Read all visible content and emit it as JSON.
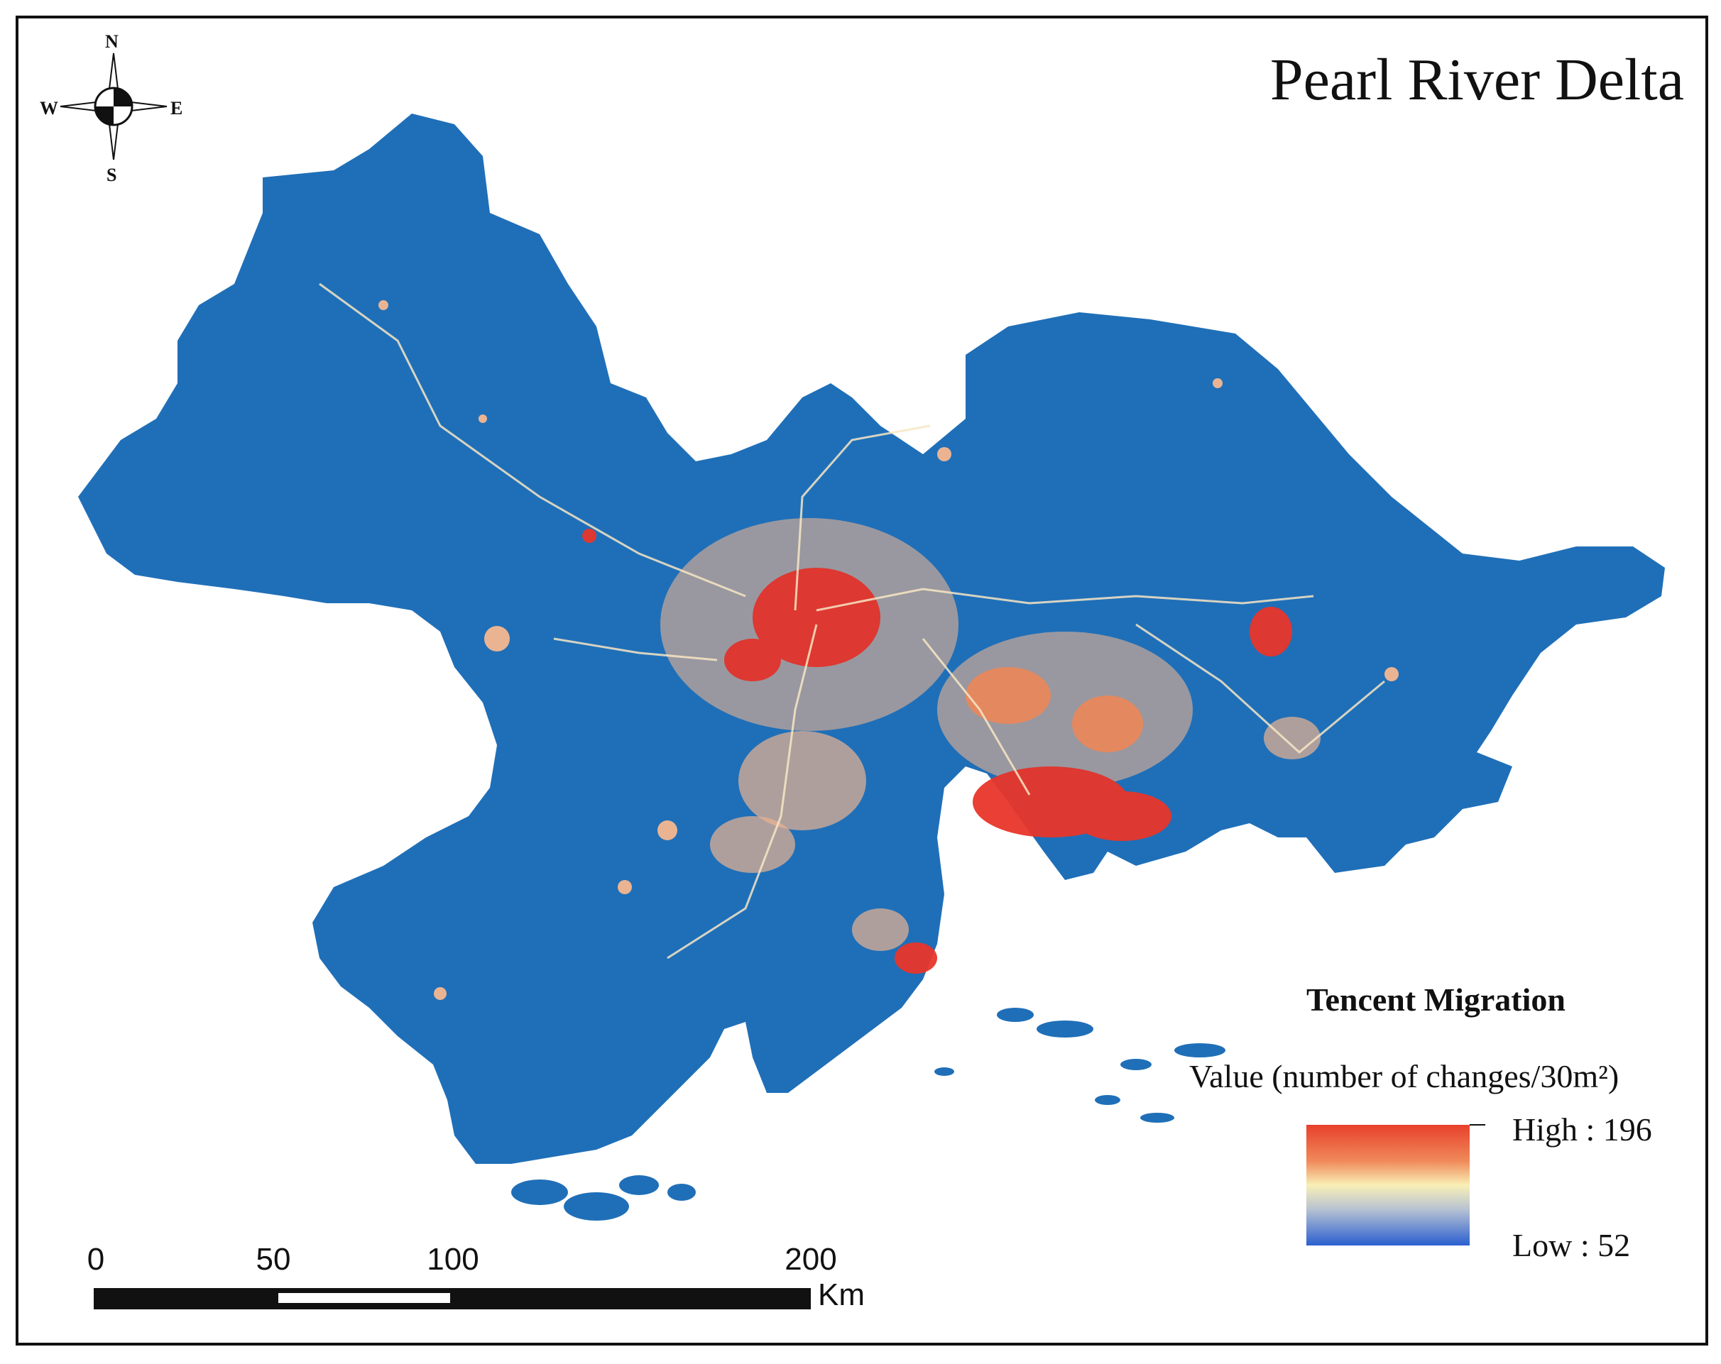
{
  "map": {
    "title": "Pearl River Delta",
    "colors": {
      "land": "#1f6fb8",
      "urban_high": "#e8352a",
      "urban_mid": "#f6b890",
      "urban_low": "#f7e6c4",
      "frame": "#111111"
    }
  },
  "compass": {
    "n": "N",
    "s": "S",
    "e": "E",
    "w": "W"
  },
  "legend": {
    "title": "Tencent Migration",
    "subtitle": "Value (number of changes/30m²)",
    "high_label": "High : 196",
    "low_label": "Low : 52",
    "high_value": 196,
    "low_value": 52
  },
  "scalebar": {
    "labels": [
      "0",
      "50",
      "100",
      "200"
    ],
    "unit": "Km"
  }
}
